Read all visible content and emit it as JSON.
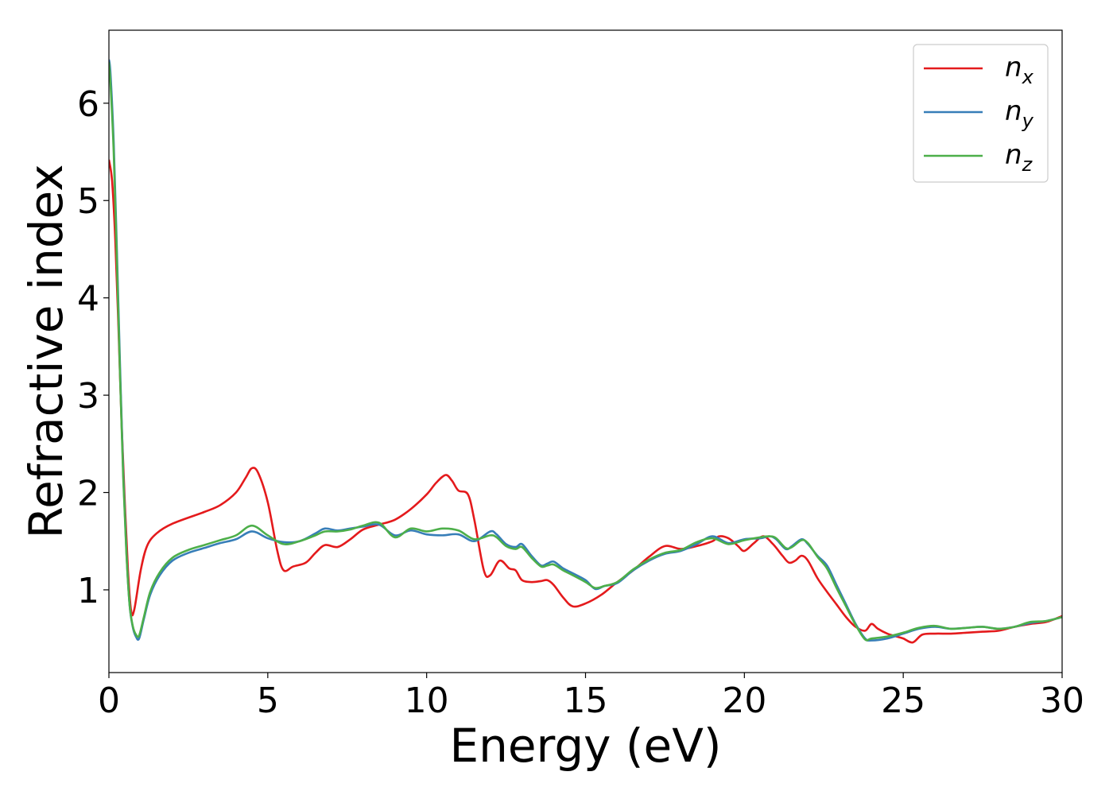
{
  "chart_data": {
    "type": "line",
    "title": "",
    "xlabel": "Energy (eV)",
    "ylabel": "Refractive index",
    "xlim": [
      0,
      30
    ],
    "ylim": [
      0.15,
      6.75
    ],
    "xticks": [
      0,
      5,
      10,
      15,
      20,
      25,
      30
    ],
    "yticks": [
      1,
      2,
      3,
      4,
      5,
      6
    ],
    "grid": false,
    "legend_position": "top-right",
    "series": [
      {
        "name": "n",
        "subscript": "x",
        "color": "#e41a1c",
        "x": [
          0,
          0.1,
          0.2,
          0.3,
          0.4,
          0.5,
          0.6,
          0.7,
          0.8,
          1.0,
          1.2,
          1.5,
          2.0,
          3.0,
          3.5,
          4.0,
          4.3,
          4.5,
          4.7,
          5.0,
          5.3,
          5.5,
          5.8,
          6.2,
          6.5,
          6.8,
          7.2,
          7.6,
          8.0,
          8.5,
          9.0,
          9.5,
          10.0,
          10.3,
          10.6,
          10.8,
          11.0,
          11.3,
          11.5,
          11.8,
          12.0,
          12.3,
          12.6,
          12.8,
          13.0,
          13.3,
          13.6,
          13.8,
          14.0,
          14.3,
          14.6,
          15.0,
          15.5,
          16.0,
          16.5,
          17.0,
          17.5,
          18.0,
          18.5,
          19.0,
          19.2,
          19.5,
          19.8,
          20.0,
          20.3,
          20.6,
          20.9,
          21.2,
          21.4,
          21.6,
          21.8,
          22.0,
          22.3,
          22.6,
          22.9,
          23.2,
          23.5,
          23.8,
          24.0,
          24.2,
          24.5,
          24.8,
          25.0,
          25.3,
          25.6,
          26.0,
          26.5,
          27.0,
          27.5,
          28.0,
          28.5,
          29.0,
          29.5,
          30.0
        ],
        "y": [
          5.42,
          5.2,
          4.6,
          3.7,
          2.7,
          1.9,
          1.2,
          0.78,
          0.8,
          1.2,
          1.45,
          1.58,
          1.68,
          1.8,
          1.87,
          2.0,
          2.15,
          2.25,
          2.2,
          1.9,
          1.4,
          1.2,
          1.24,
          1.28,
          1.38,
          1.46,
          1.44,
          1.52,
          1.62,
          1.67,
          1.72,
          1.83,
          1.98,
          2.1,
          2.18,
          2.12,
          2.02,
          1.98,
          1.72,
          1.2,
          1.15,
          1.3,
          1.22,
          1.2,
          1.1,
          1.08,
          1.09,
          1.1,
          1.05,
          0.92,
          0.83,
          0.86,
          0.95,
          1.08,
          1.2,
          1.34,
          1.45,
          1.42,
          1.45,
          1.5,
          1.55,
          1.53,
          1.45,
          1.4,
          1.48,
          1.55,
          1.47,
          1.35,
          1.28,
          1.3,
          1.35,
          1.3,
          1.12,
          0.98,
          0.85,
          0.72,
          0.62,
          0.58,
          0.65,
          0.6,
          0.55,
          0.52,
          0.5,
          0.46,
          0.54,
          0.55,
          0.55,
          0.56,
          0.57,
          0.58,
          0.62,
          0.65,
          0.67,
          0.73
        ]
      },
      {
        "name": "n",
        "subscript": "y",
        "color": "#377eb8",
        "x": [
          0,
          0.05,
          0.15,
          0.25,
          0.35,
          0.45,
          0.55,
          0.65,
          0.75,
          0.85,
          0.95,
          1.1,
          1.3,
          1.6,
          2.0,
          2.5,
          3.0,
          3.5,
          4.0,
          4.5,
          5.0,
          5.5,
          6.0,
          6.5,
          6.8,
          7.2,
          7.6,
          8.0,
          8.5,
          9.0,
          9.5,
          10.0,
          10.5,
          11.0,
          11.5,
          12.0,
          12.2,
          12.5,
          12.8,
          13.0,
          13.3,
          13.6,
          13.8,
          14.0,
          14.3,
          14.6,
          15.0,
          15.3,
          15.6,
          16.0,
          16.5,
          17.0,
          17.5,
          18.0,
          18.5,
          19.0,
          19.5,
          20.0,
          20.5,
          20.8,
          21.0,
          21.3,
          21.5,
          21.8,
          22.0,
          22.3,
          22.6,
          22.9,
          23.2,
          23.5,
          23.8,
          24.0,
          24.5,
          25.0,
          25.5,
          26.0,
          26.5,
          27.0,
          27.5,
          28.0,
          28.5,
          29.0,
          29.5,
          30.0
        ],
        "y": [
          6.45,
          6.3,
          5.6,
          4.5,
          3.3,
          2.2,
          1.4,
          0.85,
          0.62,
          0.52,
          0.5,
          0.7,
          0.95,
          1.15,
          1.3,
          1.38,
          1.43,
          1.48,
          1.52,
          1.6,
          1.53,
          1.49,
          1.5,
          1.58,
          1.63,
          1.61,
          1.63,
          1.65,
          1.67,
          1.56,
          1.61,
          1.57,
          1.56,
          1.57,
          1.5,
          1.6,
          1.57,
          1.47,
          1.44,
          1.47,
          1.35,
          1.25,
          1.27,
          1.29,
          1.22,
          1.17,
          1.1,
          1.01,
          1.04,
          1.07,
          1.2,
          1.3,
          1.37,
          1.4,
          1.47,
          1.55,
          1.48,
          1.52,
          1.53,
          1.55,
          1.52,
          1.42,
          1.45,
          1.52,
          1.47,
          1.35,
          1.25,
          1.05,
          0.85,
          0.65,
          0.5,
          0.48,
          0.5,
          0.55,
          0.6,
          0.62,
          0.6,
          0.61,
          0.62,
          0.6,
          0.62,
          0.66,
          0.68,
          0.72
        ]
      },
      {
        "name": "n",
        "subscript": "z",
        "color": "#4daf4a",
        "x": [
          0,
          0.05,
          0.15,
          0.25,
          0.35,
          0.45,
          0.55,
          0.65,
          0.75,
          0.85,
          0.95,
          1.1,
          1.3,
          1.6,
          2.0,
          2.5,
          3.0,
          3.5,
          4.0,
          4.5,
          5.0,
          5.5,
          6.0,
          6.5,
          6.8,
          7.2,
          7.6,
          8.0,
          8.5,
          9.0,
          9.5,
          10.0,
          10.5,
          11.0,
          11.5,
          12.0,
          12.2,
          12.5,
          12.8,
          13.0,
          13.3,
          13.6,
          13.8,
          14.0,
          14.3,
          14.6,
          15.0,
          15.3,
          15.6,
          16.0,
          16.5,
          17.0,
          17.5,
          18.0,
          18.5,
          19.0,
          19.5,
          20.0,
          20.5,
          20.8,
          21.0,
          21.3,
          21.5,
          21.8,
          22.0,
          22.3,
          22.6,
          22.9,
          23.2,
          23.5,
          23.8,
          24.0,
          24.5,
          25.0,
          25.5,
          26.0,
          26.5,
          27.0,
          27.5,
          28.0,
          28.5,
          29.0,
          29.5,
          30.0
        ],
        "y": [
          6.42,
          6.2,
          5.5,
          4.4,
          3.2,
          2.15,
          1.38,
          0.85,
          0.63,
          0.54,
          0.53,
          0.72,
          0.98,
          1.18,
          1.33,
          1.41,
          1.46,
          1.51,
          1.56,
          1.66,
          1.56,
          1.47,
          1.5,
          1.56,
          1.6,
          1.6,
          1.62,
          1.66,
          1.69,
          1.54,
          1.63,
          1.6,
          1.63,
          1.61,
          1.52,
          1.56,
          1.54,
          1.45,
          1.42,
          1.44,
          1.33,
          1.24,
          1.25,
          1.26,
          1.2,
          1.15,
          1.08,
          1.02,
          1.04,
          1.08,
          1.21,
          1.31,
          1.38,
          1.41,
          1.49,
          1.53,
          1.47,
          1.51,
          1.54,
          1.55,
          1.53,
          1.43,
          1.44,
          1.51,
          1.48,
          1.34,
          1.22,
          1.02,
          0.83,
          0.64,
          0.49,
          0.5,
          0.52,
          0.56,
          0.61,
          0.63,
          0.6,
          0.61,
          0.62,
          0.6,
          0.62,
          0.67,
          0.68,
          0.72
        ]
      }
    ]
  }
}
